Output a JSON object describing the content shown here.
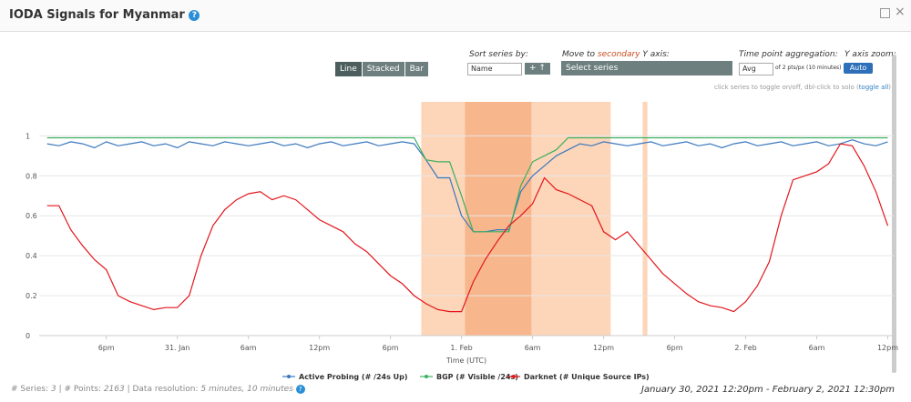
{
  "header": {
    "title": "IODA Signals for Myanmar"
  },
  "controls": {
    "chart_types": [
      "Line",
      "Stacked",
      "Bar"
    ],
    "sort_label": "Sort series by:",
    "sort_value": "Name",
    "move_label_parts": [
      "Move to ",
      "secondary",
      " Y axis:"
    ],
    "move_value": "Select series",
    "aggregation_label": "Time point aggregation:",
    "aggregation_value": "Avg",
    "aggregation_note": "of 2 pts/px (10 minutes)",
    "zoom_label": "Y axis zoom:",
    "zoom_value": "Auto",
    "hint": "click series to toggle on/off, dbl-click to solo (",
    "hint_link": "toggle all",
    "hint_end": ")"
  },
  "chart_data": {
    "type": "line",
    "x_label": "Time (UTC)",
    "x": [
      13,
      14,
      15,
      16,
      17,
      18,
      19,
      20,
      21,
      22,
      23,
      24,
      25,
      26,
      27,
      28,
      29,
      30,
      31,
      32,
      33,
      34,
      35,
      36,
      37,
      38,
      39,
      40,
      41,
      42,
      43,
      44,
      45,
      46,
      47,
      48,
      49,
      50,
      51,
      52,
      53,
      54,
      55,
      56,
      57,
      58,
      59,
      60,
      61,
      62,
      63,
      64,
      65,
      66,
      67,
      68,
      69,
      70,
      71,
      72,
      73,
      74,
      75,
      76,
      77,
      78,
      79,
      80,
      81,
      82,
      83,
      84
    ],
    "xlim": [
      12.33,
      84.5
    ],
    "xticks": [
      {
        "value": 18,
        "label": "6pm"
      },
      {
        "value": 24,
        "label": "31. Jan"
      },
      {
        "value": 30,
        "label": "6am"
      },
      {
        "value": 36,
        "label": "12pm"
      },
      {
        "value": 42,
        "label": "6pm"
      },
      {
        "value": 48,
        "label": "1. Feb"
      },
      {
        "value": 54,
        "label": "6am"
      },
      {
        "value": 60,
        "label": "12pm"
      },
      {
        "value": 66,
        "label": "6pm"
      },
      {
        "value": 72,
        "label": "2. Feb"
      },
      {
        "value": 78,
        "label": "6am"
      },
      {
        "value": 84,
        "label": "12pm"
      }
    ],
    "ylim": [
      0,
      1.17
    ],
    "yticks": [
      0,
      0.2,
      0.4,
      0.6,
      0.8,
      1
    ],
    "grid": true,
    "bands": [
      {
        "from": 44.6,
        "to": 60.6,
        "color": "#fdd5b8"
      },
      {
        "from": 48.3,
        "to": 53.9,
        "color": "#f8b68c"
      },
      {
        "from": 63.3,
        "to": 63.7,
        "color": "#fdd5b8"
      }
    ],
    "series": [
      {
        "name": "Active Probing (# /24s Up)",
        "color": "#3a78bd",
        "values": [
          0.96,
          0.95,
          0.97,
          0.96,
          0.94,
          0.97,
          0.95,
          0.96,
          0.97,
          0.95,
          0.96,
          0.94,
          0.97,
          0.96,
          0.95,
          0.97,
          0.96,
          0.95,
          0.96,
          0.97,
          0.95,
          0.96,
          0.94,
          0.96,
          0.97,
          0.95,
          0.96,
          0.97,
          0.95,
          0.96,
          0.97,
          0.96,
          0.88,
          0.79,
          0.79,
          0.6,
          0.52,
          0.52,
          0.53,
          0.53,
          0.72,
          0.8,
          0.85,
          0.9,
          0.93,
          0.96,
          0.95,
          0.97,
          0.96,
          0.95,
          0.96,
          0.97,
          0.95,
          0.96,
          0.97,
          0.95,
          0.96,
          0.94,
          0.96,
          0.97,
          0.95,
          0.96,
          0.97,
          0.95,
          0.96,
          0.97,
          0.95,
          0.96,
          0.98,
          0.96,
          0.95,
          0.97
        ]
      },
      {
        "name": "BGP (# Visible /24s)",
        "color": "#3cb060",
        "values": [
          0.99,
          0.99,
          0.99,
          0.99,
          0.99,
          0.99,
          0.99,
          0.99,
          0.99,
          0.99,
          0.99,
          0.99,
          0.99,
          0.99,
          0.99,
          0.99,
          0.99,
          0.99,
          0.99,
          0.99,
          0.99,
          0.99,
          0.99,
          0.99,
          0.99,
          0.99,
          0.99,
          0.99,
          0.99,
          0.99,
          0.99,
          0.99,
          0.88,
          0.87,
          0.87,
          0.7,
          0.52,
          0.52,
          0.52,
          0.52,
          0.75,
          0.87,
          0.9,
          0.93,
          0.99,
          0.99,
          0.99,
          0.99,
          0.99,
          0.99,
          0.99,
          0.99,
          0.99,
          0.99,
          0.99,
          0.99,
          0.99,
          0.99,
          0.99,
          0.99,
          0.99,
          0.99,
          0.99,
          0.99,
          0.99,
          0.99,
          0.99,
          0.99,
          0.99,
          0.99,
          0.99,
          0.99
        ]
      },
      {
        "name": "Darknet (# Unique Source IPs)",
        "color": "#e3161c",
        "values": [
          0.65,
          0.65,
          0.53,
          0.45,
          0.38,
          0.33,
          0.2,
          0.17,
          0.15,
          0.13,
          0.14,
          0.14,
          0.2,
          0.4,
          0.55,
          0.63,
          0.68,
          0.71,
          0.72,
          0.68,
          0.7,
          0.68,
          0.63,
          0.58,
          0.55,
          0.52,
          0.46,
          0.42,
          0.36,
          0.3,
          0.26,
          0.2,
          0.16,
          0.13,
          0.12,
          0.12,
          0.27,
          0.38,
          0.47,
          0.55,
          0.6,
          0.66,
          0.79,
          0.73,
          0.71,
          0.68,
          0.65,
          0.52,
          0.48,
          0.52,
          0.45,
          0.38,
          0.31,
          0.26,
          0.21,
          0.17,
          0.15,
          0.14,
          0.12,
          0.17,
          0.25,
          0.37,
          0.6,
          0.78,
          0.8,
          0.82,
          0.86,
          0.96,
          0.95,
          0.85,
          0.72,
          0.55
        ]
      }
    ]
  },
  "footer": {
    "series_label": "# Series: ",
    "series_value": "3",
    "points_label": " | # Points: ",
    "points_value": "2163",
    "resolution_label": " | Data resolution: ",
    "resolution_value": "5 minutes, 10 minutes",
    "range": "January 30, 2021 12:20pm - February 2, 2021 12:30pm"
  }
}
